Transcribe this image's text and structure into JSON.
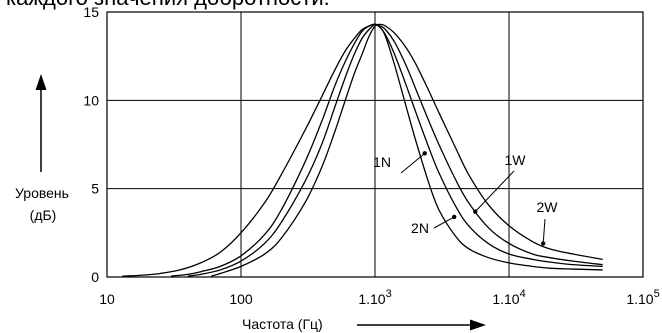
{
  "header_fragment": "каждого значения добротности.",
  "chart_data": {
    "type": "line",
    "title": "",
    "xlabel": "Частота (Гц)",
    "ylabel_lines": [
      "Уровень",
      "(дБ)"
    ],
    "x_scale": "log",
    "xlim": [
      10,
      100000
    ],
    "ylim": [
      0,
      15
    ],
    "x_ticks": [
      {
        "value": 10,
        "base": "10",
        "exp": ""
      },
      {
        "value": 100,
        "base": "100",
        "exp": ""
      },
      {
        "value": 1000,
        "base": "1.10",
        "exp": "3"
      },
      {
        "value": 10000,
        "base": "1.10",
        "exp": "4"
      },
      {
        "value": 100000,
        "base": "1.10",
        "exp": "5"
      }
    ],
    "y_ticks": [
      {
        "value": 0,
        "label": "0"
      },
      {
        "value": 5,
        "label": "5"
      },
      {
        "value": 10,
        "label": "10"
      },
      {
        "value": 15,
        "label": "15"
      }
    ],
    "grid": true,
    "series": [
      {
        "name": "1N",
        "x": [
          13,
          18,
          25,
          35,
          50,
          70,
          100,
          150,
          200,
          300,
          400,
          500,
          600,
          700,
          800,
          900,
          1000,
          1100,
          1200,
          1400,
          1700,
          2000,
          2500,
          3000,
          4000,
          5000,
          7000,
          10000,
          15000,
          20000,
          30000,
          50000
        ],
        "y": [
          0.05,
          0.1,
          0.2,
          0.4,
          0.8,
          1.4,
          2.5,
          4.2,
          5.8,
          8.3,
          10.2,
          11.7,
          12.8,
          13.5,
          14.0,
          14.2,
          14.3,
          14.1,
          13.6,
          12.0,
          9.7,
          7.8,
          5.4,
          3.8,
          2.3,
          1.6,
          1.1,
          0.8,
          0.6,
          0.5,
          0.45,
          0.4
        ]
      },
      {
        "name": "2N",
        "x": [
          30,
          40,
          50,
          70,
          100,
          150,
          200,
          300,
          400,
          500,
          600,
          700,
          800,
          900,
          1000,
          1100,
          1200,
          1400,
          1700,
          2000,
          2500,
          3000,
          4000,
          5000,
          7000,
          10000,
          15000,
          20000,
          30000,
          50000
        ],
        "y": [
          0.05,
          0.15,
          0.3,
          0.6,
          1.2,
          2.4,
          3.8,
          6.5,
          8.8,
          10.8,
          12.2,
          13.2,
          13.9,
          14.2,
          14.3,
          14.1,
          13.7,
          12.6,
          10.9,
          9.4,
          7.4,
          5.9,
          4.0,
          2.9,
          1.9,
          1.3,
          1.0,
          0.85,
          0.7,
          0.6
        ]
      },
      {
        "name": "1W",
        "x": [
          40,
          50,
          70,
          100,
          150,
          200,
          300,
          400,
          500,
          600,
          700,
          800,
          900,
          1000,
          1100,
          1200,
          1400,
          1700,
          2000,
          2500,
          3000,
          4000,
          5000,
          7000,
          10000,
          15000,
          20000,
          30000,
          50000
        ],
        "y": [
          0.05,
          0.15,
          0.4,
          0.9,
          1.9,
          3.1,
          5.4,
          7.5,
          9.6,
          11.3,
          12.6,
          13.5,
          14.0,
          14.3,
          14.2,
          14.0,
          13.3,
          12.0,
          10.7,
          8.9,
          7.5,
          5.5,
          4.2,
          2.8,
          1.9,
          1.3,
          1.1,
          0.9,
          0.7
        ]
      },
      {
        "name": "2W",
        "x": [
          60,
          70,
          100,
          150,
          200,
          300,
          400,
          500,
          600,
          700,
          800,
          900,
          1000,
          1100,
          1200,
          1400,
          1700,
          2000,
          2500,
          3000,
          4000,
          5000,
          7000,
          10000,
          15000,
          20000,
          30000,
          50000
        ],
        "y": [
          0.05,
          0.2,
          0.6,
          1.3,
          2.2,
          4.2,
          6.2,
          8.2,
          10.0,
          11.5,
          12.6,
          13.6,
          14.2,
          14.3,
          14.2,
          13.8,
          13.0,
          12.1,
          10.6,
          9.3,
          7.3,
          5.8,
          4.1,
          2.9,
          2.0,
          1.6,
          1.3,
          1.0
        ]
      }
    ],
    "annotations": [
      {
        "text": "1N",
        "x": 2350,
        "y": 7.0
      },
      {
        "text": "2N",
        "x": 3900,
        "y": 3.4
      },
      {
        "text": "1W",
        "x": 5600,
        "y": 3.7
      },
      {
        "text": "2W",
        "x": 18000,
        "y": 1.9
      }
    ]
  }
}
